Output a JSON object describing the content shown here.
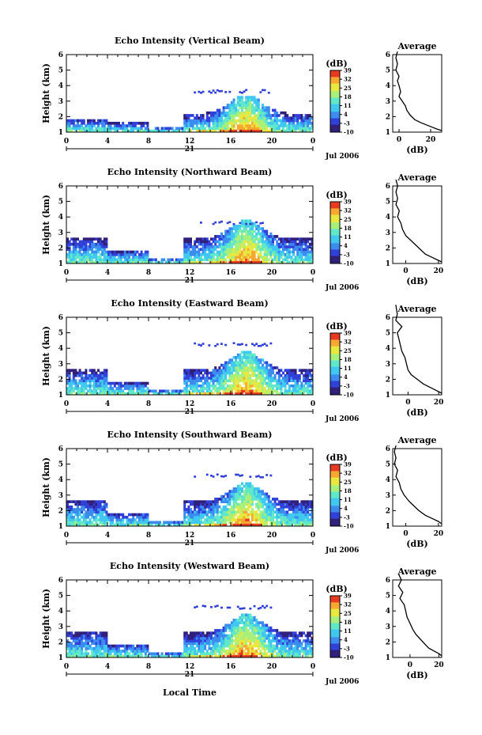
{
  "chart_data": {
    "type": "heatmap",
    "date_label": "Jul 2006",
    "day_label": "21",
    "xlabel_bottom": "Local Time",
    "x_ticks": [
      "0",
      "4",
      "8",
      "12",
      "16",
      "20",
      "0"
    ],
    "y_ticks": [
      "1",
      "2",
      "3",
      "4",
      "5",
      "6"
    ],
    "ylabel": "Height (km)",
    "colorbar_unit": "(dB)",
    "colorbar_ticks": [
      "-10",
      "-3",
      "4",
      "11",
      "18",
      "25",
      "32",
      "39"
    ],
    "colorbar_range": [
      -10,
      39
    ],
    "colors": [
      "#30207a",
      "#3040d8",
      "#3c8cf0",
      "#40c8f0",
      "#60e8c8",
      "#a8f07a",
      "#e8e840",
      "#f8a830",
      "#e83a20"
    ],
    "avg_title": "Average",
    "avg_xlabel": "(dB)",
    "panels": [
      {
        "title": "Echo Intensity (Vertical Beam)",
        "avg_xticks": [
          "0",
          "20"
        ],
        "avg_xrange": [
          -4,
          27
        ],
        "avg_profile": [
          [
            -1,
            6.2
          ],
          [
            -2,
            5.8
          ],
          [
            -1,
            5.4
          ],
          [
            -2,
            5.0
          ],
          [
            0,
            4.6
          ],
          [
            -1,
            4.3
          ],
          [
            0,
            4.0
          ],
          [
            1,
            3.6
          ],
          [
            0,
            3.3
          ],
          [
            2,
            3.0
          ],
          [
            4,
            2.7
          ],
          [
            5,
            2.4
          ],
          [
            7,
            2.1
          ],
          [
            10,
            1.8
          ],
          [
            14,
            1.6
          ],
          [
            19,
            1.4
          ],
          [
            24,
            1.2
          ],
          [
            27,
            1.1
          ]
        ]
      },
      {
        "title": "Echo Intensity (Northward Beam)",
        "avg_xticks": [
          "0",
          "20"
        ],
        "avg_xrange": [
          -8,
          22
        ],
        "avg_profile": [
          [
            -6,
            6.4
          ],
          [
            -5,
            6.0
          ],
          [
            -6,
            5.6
          ],
          [
            -5,
            5.2
          ],
          [
            -6,
            4.8
          ],
          [
            -4,
            4.4
          ],
          [
            -5,
            4.0
          ],
          [
            -3,
            3.6
          ],
          [
            -2,
            3.2
          ],
          [
            0,
            2.8
          ],
          [
            3,
            2.5
          ],
          [
            6,
            2.2
          ],
          [
            9,
            1.9
          ],
          [
            12,
            1.6
          ],
          [
            16,
            1.4
          ],
          [
            19,
            1.25
          ],
          [
            22,
            1.1
          ]
        ]
      },
      {
        "title": "Echo Intensity (Eastward Beam)",
        "avg_xticks": [
          "0",
          "20"
        ],
        "avg_xrange": [
          -10,
          22
        ],
        "avg_profile": [
          [
            -8,
            6.8
          ],
          [
            -7,
            6.2
          ],
          [
            -8,
            5.8
          ],
          [
            -4,
            5.4
          ],
          [
            -7,
            5.0
          ],
          [
            -6,
            4.6
          ],
          [
            -5,
            4.2
          ],
          [
            -4,
            3.8
          ],
          [
            -2,
            3.4
          ],
          [
            -1,
            3.0
          ],
          [
            0,
            2.6
          ],
          [
            2,
            2.3
          ],
          [
            6,
            2.0
          ],
          [
            10,
            1.7
          ],
          [
            14,
            1.5
          ],
          [
            19,
            1.25
          ],
          [
            22,
            1.1
          ]
        ]
      },
      {
        "title": "Echo Intensity (Southward Beam)",
        "avg_xticks": [
          "0",
          "20"
        ],
        "avg_xrange": [
          -8,
          22
        ],
        "avg_profile": [
          [
            -6,
            6.2
          ],
          [
            -7,
            5.8
          ],
          [
            -6,
            5.4
          ],
          [
            -7,
            5.0
          ],
          [
            -5,
            4.6
          ],
          [
            -6,
            4.2
          ],
          [
            -4,
            3.8
          ],
          [
            -3,
            3.4
          ],
          [
            -1,
            3.0
          ],
          [
            2,
            2.6
          ],
          [
            5,
            2.3
          ],
          [
            8,
            2.0
          ],
          [
            12,
            1.7
          ],
          [
            16,
            1.5
          ],
          [
            20,
            1.3
          ],
          [
            22,
            1.15
          ]
        ]
      },
      {
        "title": "Echo Intensity (Westward Beam)",
        "avg_xticks": [
          "0",
          "20"
        ],
        "avg_xrange": [
          -12,
          22
        ],
        "avg_profile": [
          [
            -8,
            6.4
          ],
          [
            -6,
            6.0
          ],
          [
            -8,
            5.6
          ],
          [
            -5,
            5.2
          ],
          [
            -7,
            4.8
          ],
          [
            -4,
            4.4
          ],
          [
            -3,
            4.0
          ],
          [
            -2,
            3.6
          ],
          [
            0,
            3.2
          ],
          [
            2,
            2.8
          ],
          [
            4,
            2.5
          ],
          [
            7,
            2.2
          ],
          [
            10,
            1.9
          ],
          [
            13,
            1.6
          ],
          [
            17,
            1.4
          ],
          [
            20,
            1.25
          ],
          [
            22,
            1.1
          ]
        ]
      }
    ]
  }
}
